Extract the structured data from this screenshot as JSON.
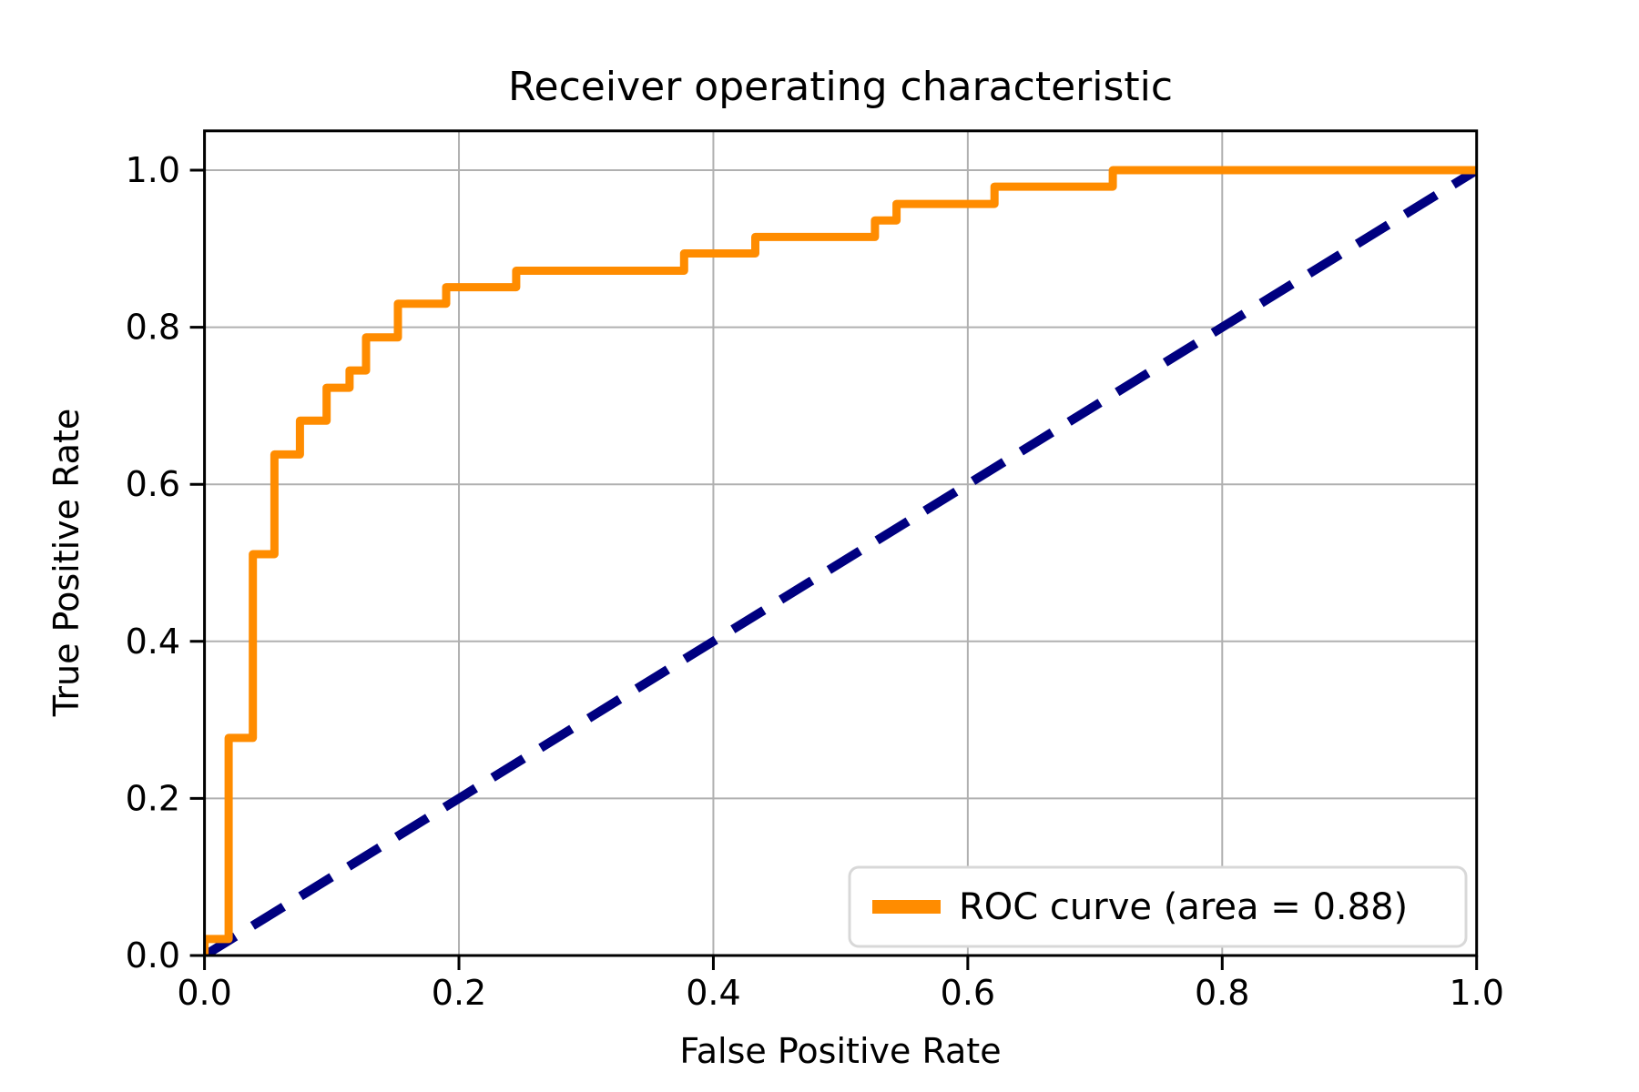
{
  "title": "Receiver operating characteristic",
  "x_axis": {
    "label": "False Positive Rate",
    "tick_labels": [
      "0.0",
      "0.2",
      "0.4",
      "0.6",
      "0.8",
      "1.0"
    ],
    "tick_values": [
      0.0,
      0.2,
      0.4,
      0.6,
      0.8,
      1.0
    ]
  },
  "y_axis": {
    "label": "True Positive Rate",
    "tick_labels": [
      "0.0",
      "0.2",
      "0.4",
      "0.6",
      "0.8",
      "1.0"
    ],
    "tick_values": [
      0.0,
      0.2,
      0.4,
      0.6,
      0.8,
      1.0
    ]
  },
  "legend": {
    "label": "ROC curve (area = 0.88)",
    "position": "lower right"
  },
  "colors": {
    "roc_curve": "#FF8C00",
    "diagonal": "#000080",
    "grid": "#B0B0B0",
    "frame": "#000000",
    "legend_border": "#D8D8D8",
    "background": "#FFFFFF"
  },
  "chart_data": {
    "type": "line",
    "title": "Receiver operating characteristic",
    "xlabel": "False Positive Rate",
    "ylabel": "True Positive Rate",
    "xlim": [
      0.0,
      1.0
    ],
    "ylim": [
      0.0,
      1.05
    ],
    "grid": true,
    "legend_position": "lower right",
    "auc": 0.88,
    "series": [
      {
        "name": "ROC curve (area = 0.88)",
        "color": "#FF8C00",
        "style": "solid",
        "line_width": 9,
        "points": [
          [
            0.0,
            0.0
          ],
          [
            0.0,
            0.021
          ],
          [
            0.019,
            0.021
          ],
          [
            0.019,
            0.277
          ],
          [
            0.038,
            0.277
          ],
          [
            0.038,
            0.511
          ],
          [
            0.055,
            0.511
          ],
          [
            0.055,
            0.638
          ],
          [
            0.075,
            0.638
          ],
          [
            0.075,
            0.681
          ],
          [
            0.096,
            0.681
          ],
          [
            0.096,
            0.723
          ],
          [
            0.114,
            0.723
          ],
          [
            0.114,
            0.745
          ],
          [
            0.127,
            0.745
          ],
          [
            0.127,
            0.787
          ],
          [
            0.152,
            0.787
          ],
          [
            0.152,
            0.83
          ],
          [
            0.19,
            0.83
          ],
          [
            0.19,
            0.851
          ],
          [
            0.245,
            0.851
          ],
          [
            0.245,
            0.872
          ],
          [
            0.377,
            0.872
          ],
          [
            0.377,
            0.894
          ],
          [
            0.433,
            0.894
          ],
          [
            0.433,
            0.915
          ],
          [
            0.527,
            0.915
          ],
          [
            0.527,
            0.936
          ],
          [
            0.544,
            0.936
          ],
          [
            0.544,
            0.957
          ],
          [
            0.621,
            0.957
          ],
          [
            0.621,
            0.979
          ],
          [
            0.714,
            0.979
          ],
          [
            0.714,
            1.0
          ],
          [
            1.0,
            1.0
          ]
        ]
      },
      {
        "name": "chance-diagonal",
        "color": "#000080",
        "style": "dashed",
        "line_width": 10,
        "points": [
          [
            0.0,
            0.0
          ],
          [
            1.0,
            1.0
          ]
        ]
      }
    ]
  }
}
